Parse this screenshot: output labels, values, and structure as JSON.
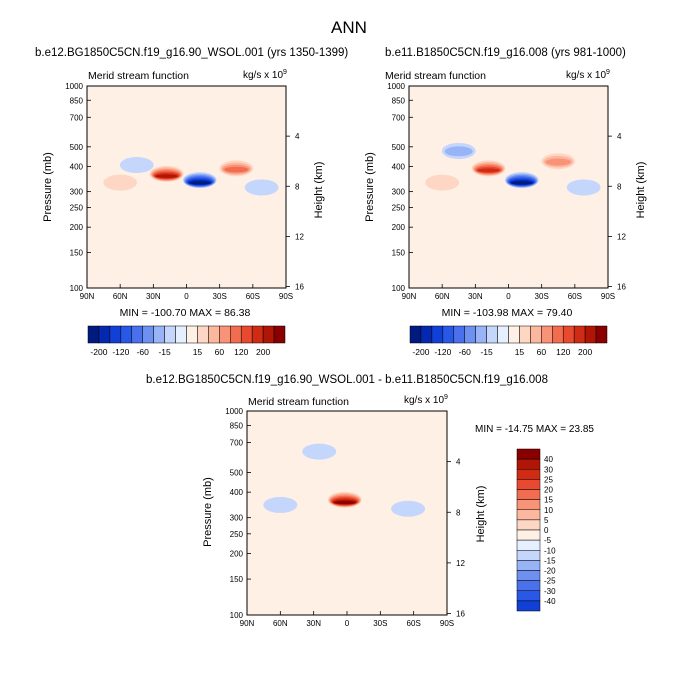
{
  "figure": {
    "title": "ANN"
  },
  "panels": [
    {
      "id": "panel-1",
      "run_title": "b.e12.BG1850C5CN.f19_g16.90_WSOL.001 (yrs 1350-1399)",
      "chart_title": "Merid stream function",
      "units_prefix": "kg/s x 10",
      "units_exp": "9",
      "ylabel_left": "Pressure (mb)",
      "ylabel_right": "Height (km)",
      "min_max": "MIN = -100.70   MAX =  86.38"
    },
    {
      "id": "panel-2",
      "run_title": "b.e11.B1850C5CN.f19_g16.008 (yrs 981-1000)",
      "chart_title": "Merid stream function",
      "units_prefix": "kg/s x 10",
      "units_exp": "9",
      "ylabel_left": "Pressure (mb)",
      "ylabel_right": "Height (km)",
      "min_max": "MIN = -103.98   MAX =  79.40"
    },
    {
      "id": "panel-3",
      "run_title": "b.e12.BG1850C5CN.f19_g16.90_WSOL.001 - b.e11.B1850C5CN.f19_g16.008",
      "chart_title": "Merid stream function",
      "units_prefix": "kg/s x 10",
      "units_exp": "9",
      "ylabel_left": "Pressure (mb)",
      "ylabel_right": "Height (km)",
      "min_max": "MIN = -14.75   MAX =  23.85"
    }
  ],
  "chart_data": [
    {
      "type": "heatmap",
      "panel": "panel-1",
      "title": "Merid stream function",
      "xlabel": "",
      "ylabel": "Pressure (mb)",
      "x_ticks": [
        "90N",
        "60N",
        "30N",
        "0",
        "30S",
        "60S",
        "90S"
      ],
      "x_range": [
        90,
        -90
      ],
      "y_ticks": [
        100,
        150,
        200,
        250,
        300,
        400,
        500,
        700,
        850,
        1000
      ],
      "y_range": [
        1000,
        100
      ],
      "height_ticks_km": [
        4,
        8,
        12,
        16
      ],
      "min": -100.7,
      "max": 86.38,
      "features": [
        {
          "lat": 60,
          "p_top": 130,
          "p_bot": 850,
          "value": 8
        },
        {
          "lat": 45,
          "p_top": 330,
          "p_bot": 500,
          "value": -15
        },
        {
          "lat": 18,
          "p_top": 150,
          "p_bot": 900,
          "value": 86
        },
        {
          "lat": -12,
          "p_top": 130,
          "p_bot": 900,
          "value": -100
        },
        {
          "lat": -45,
          "p_top": 170,
          "p_bot": 900,
          "value": 50
        },
        {
          "lat": -68,
          "p_top": 110,
          "p_bot": 900,
          "value": -8
        }
      ]
    },
    {
      "type": "heatmap",
      "panel": "panel-2",
      "title": "Merid stream function",
      "xlabel": "",
      "ylabel": "Pressure (mb)",
      "x_ticks": [
        "90N",
        "60N",
        "30N",
        "0",
        "30S",
        "60S",
        "90S"
      ],
      "x_range": [
        90,
        -90
      ],
      "y_ticks": [
        100,
        150,
        200,
        250,
        300,
        400,
        500,
        700,
        850,
        1000
      ],
      "y_range": [
        1000,
        100
      ],
      "height_ticks_km": [
        4,
        8,
        12,
        16
      ],
      "min": -103.98,
      "max": 79.4,
      "features": [
        {
          "lat": 60,
          "p_top": 130,
          "p_bot": 850,
          "value": 8
        },
        {
          "lat": 45,
          "p_top": 350,
          "p_bot": 650,
          "value": -25
        },
        {
          "lat": 18,
          "p_top": 170,
          "p_bot": 900,
          "value": 79
        },
        {
          "lat": -12,
          "p_top": 130,
          "p_bot": 900,
          "value": -104
        },
        {
          "lat": -45,
          "p_top": 200,
          "p_bot": 900,
          "value": 40
        },
        {
          "lat": -68,
          "p_top": 110,
          "p_bot": 900,
          "value": -8
        }
      ]
    },
    {
      "type": "heatmap",
      "panel": "panel-3",
      "title": "Merid stream function",
      "xlabel": "",
      "ylabel": "Pressure (mb)",
      "x_ticks": [
        "90N",
        "60N",
        "30N",
        "0",
        "30S",
        "60S",
        "90S"
      ],
      "x_range": [
        90,
        -90
      ],
      "y_ticks": [
        100,
        150,
        200,
        250,
        300,
        400,
        500,
        700,
        850,
        1000
      ],
      "y_range": [
        1000,
        100
      ],
      "height_ticks_km": [
        4,
        8,
        12,
        16
      ],
      "min": -14.75,
      "max": 23.85,
      "features": [
        {
          "lat": 60,
          "p_top": 120,
          "p_bot": 1000,
          "value": -3
        },
        {
          "lat": 25,
          "p_top": 400,
          "p_bot": 1000,
          "value": -3
        },
        {
          "lat": 2,
          "p_top": 150,
          "p_bot": 900,
          "value": 23
        },
        {
          "lat": -55,
          "p_top": 110,
          "p_bot": 1000,
          "value": -3
        }
      ]
    }
  ],
  "colorbars": [
    {
      "id": "colorbar-top-left",
      "orientation": "horizontal",
      "labels": [
        "-200",
        "-120",
        "-60",
        "-15",
        "15",
        "60",
        "120",
        "200"
      ],
      "colors": [
        "#001a80",
        "#0528b0",
        "#1040d8",
        "#2a58e6",
        "#4a70ec",
        "#6e90f0",
        "#98b4f6",
        "#c4d6fb",
        "#e6efff",
        "#fff0e6",
        "#fdd7c4",
        "#fbb89e",
        "#f89378",
        "#f26d50",
        "#e84a30",
        "#d02c14",
        "#b01505",
        "#8a0000"
      ]
    },
    {
      "id": "colorbar-top-right",
      "orientation": "horizontal",
      "labels": [
        "-200",
        "-120",
        "-60",
        "-15",
        "15",
        "60",
        "120",
        "200"
      ],
      "colors": [
        "#001a80",
        "#0528b0",
        "#1040d8",
        "#2a58e6",
        "#4a70ec",
        "#6e90f0",
        "#98b4f6",
        "#c4d6fb",
        "#e6efff",
        "#fff0e6",
        "#fdd7c4",
        "#fbb89e",
        "#f89378",
        "#f26d50",
        "#e84a30",
        "#d02c14",
        "#b01505",
        "#8a0000"
      ]
    },
    {
      "id": "colorbar-bottom",
      "orientation": "vertical",
      "labels": [
        "40",
        "30",
        "25",
        "20",
        "15",
        "10",
        "5",
        "0",
        "-5",
        "-10",
        "-15",
        "-20",
        "-25",
        "-30",
        "-40"
      ],
      "colors": [
        "#8a0000",
        "#b01505",
        "#d02c14",
        "#e84a30",
        "#f26d50",
        "#f89378",
        "#fbb89e",
        "#fdd7c4",
        "#fff0e6",
        "#e6efff",
        "#c4d6fb",
        "#98b4f6",
        "#6e90f0",
        "#4a70ec",
        "#2a58e6",
        "#1040d8"
      ]
    }
  ]
}
